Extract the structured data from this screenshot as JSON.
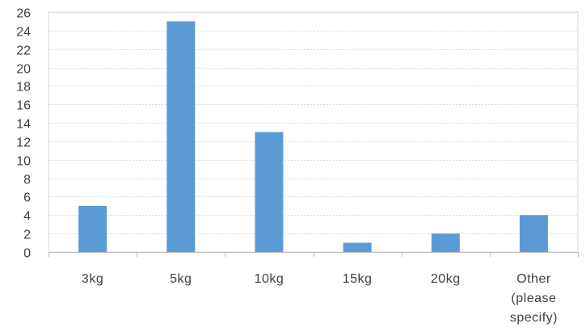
{
  "chart_data": {
    "type": "bar",
    "title": "",
    "xlabel": "",
    "ylabel": "",
    "categories": [
      "3kg",
      "5kg",
      "10kg",
      "15kg",
      "20kg",
      "Other (please specify)"
    ],
    "category_lines": [
      [
        "3kg"
      ],
      [
        "5kg"
      ],
      [
        "10kg"
      ],
      [
        "15kg"
      ],
      [
        "20kg"
      ],
      [
        "Other",
        "(please",
        "specify)"
      ]
    ],
    "values": [
      5,
      25,
      13,
      1,
      2,
      4
    ],
    "ylim": [
      0,
      26
    ],
    "yticks": [
      0,
      2,
      4,
      6,
      8,
      10,
      12,
      14,
      16,
      18,
      20,
      22,
      24,
      26
    ],
    "grid": true,
    "bar_color": "#5b9bd5",
    "gridline_color": "#d9d9d9",
    "axis_color": "#bfbfbf"
  }
}
